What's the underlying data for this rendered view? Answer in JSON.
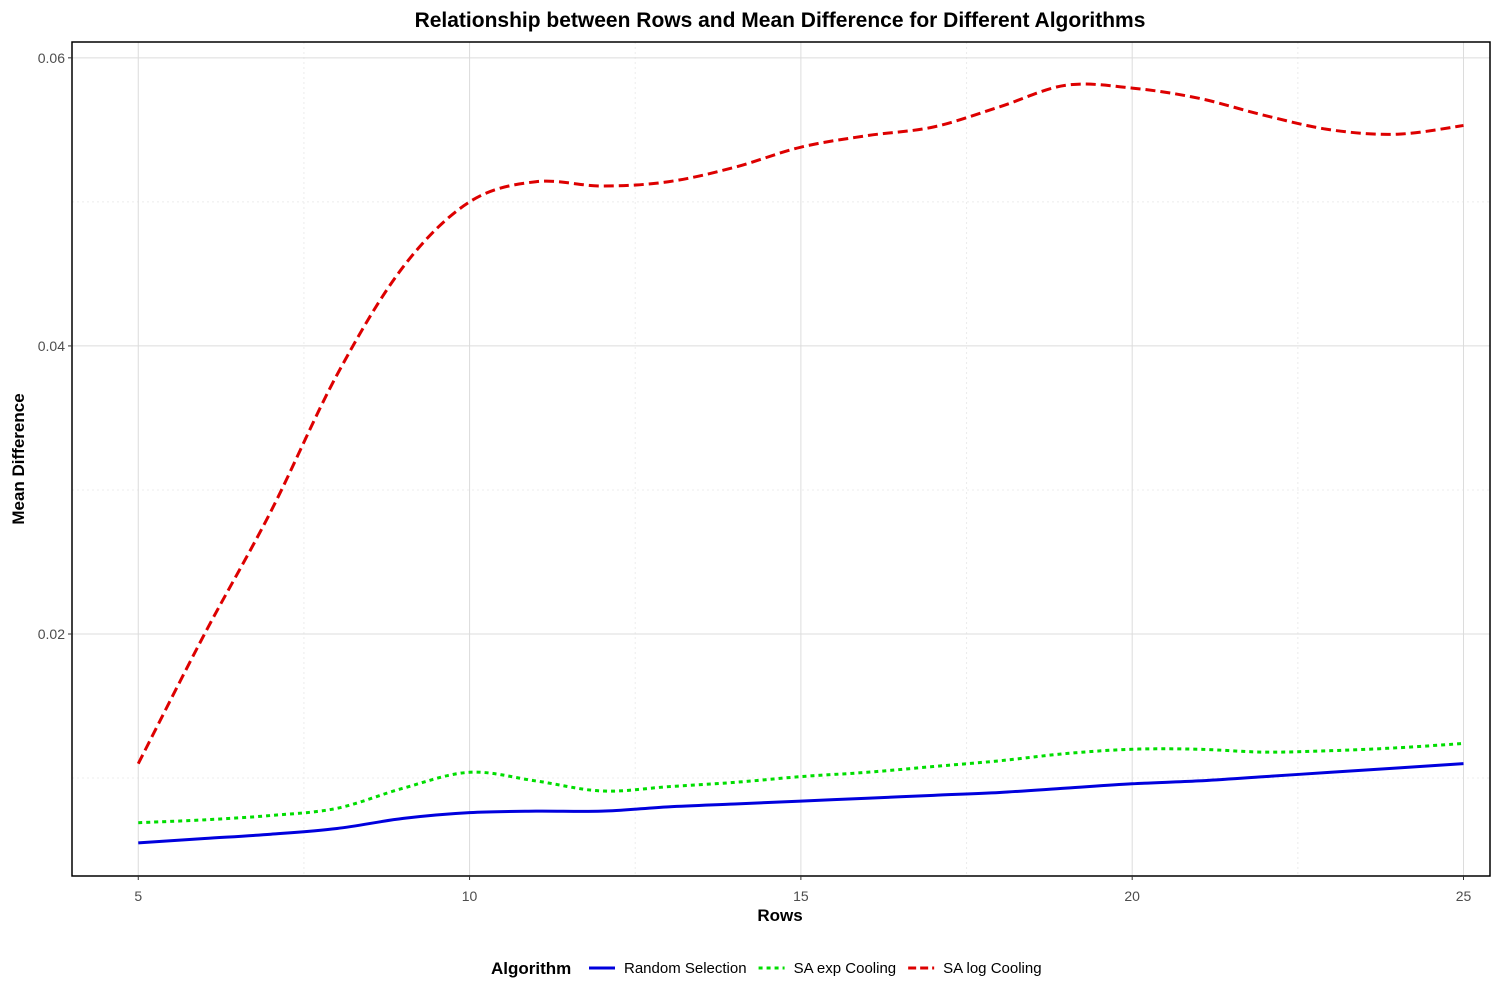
{
  "chart_data": {
    "type": "line",
    "title": "Relationship between Rows and Mean Difference for Different Algorithms",
    "xlabel": "Rows",
    "ylabel": "Mean Difference",
    "xlim": [
      4,
      25.4
    ],
    "ylim": [
      0.0032,
      0.0611
    ],
    "x_ticks": [
      5,
      10,
      15,
      20,
      25
    ],
    "x_tick_labels": [
      "5",
      "10",
      "15",
      "20",
      "25"
    ],
    "y_ticks": [
      0.02,
      0.04,
      0.06
    ],
    "y_tick_labels": [
      "0.02",
      "0.04",
      "0.06"
    ],
    "x_minor_ticks": [
      7.5,
      12.5,
      17.5,
      22.5
    ],
    "y_minor_ticks": [
      0.01,
      0.03,
      0.05
    ],
    "grid": true,
    "legend_position": "bottom",
    "legend_title": "Algorithm",
    "x": [
      5,
      6,
      7,
      8,
      9,
      10,
      11,
      12,
      13,
      14,
      15,
      16,
      17,
      18,
      19,
      20,
      21,
      22,
      23,
      24,
      25
    ],
    "series": [
      {
        "name": "Random Selection",
        "color": "#0000dd",
        "dash": "solid",
        "values": [
          0.0055,
          0.0058,
          0.0061,
          0.0065,
          0.0072,
          0.0076,
          0.0077,
          0.0077,
          0.008,
          0.0082,
          0.0084,
          0.0086,
          0.0088,
          0.009,
          0.0093,
          0.0096,
          0.0098,
          0.0101,
          0.0104,
          0.0107,
          0.011
        ]
      },
      {
        "name": "SA exp Cooling",
        "color": "#00dd00",
        "dash": "dotted",
        "values": [
          0.0069,
          0.0071,
          0.0074,
          0.0079,
          0.0093,
          0.0104,
          0.0098,
          0.0091,
          0.0094,
          0.0097,
          0.0101,
          0.0104,
          0.0108,
          0.0112,
          0.0117,
          0.012,
          0.012,
          0.0118,
          0.0119,
          0.0121,
          0.0124
        ]
      },
      {
        "name": "SA log Cooling",
        "color": "#dd0000",
        "dash": "dashed",
        "values": [
          0.011,
          0.02,
          0.0285,
          0.038,
          0.0455,
          0.05,
          0.0514,
          0.0511,
          0.0514,
          0.0524,
          0.0538,
          0.0546,
          0.0552,
          0.0566,
          0.0581,
          0.0579,
          0.0572,
          0.056,
          0.055,
          0.0547,
          0.0553
        ]
      }
    ]
  }
}
